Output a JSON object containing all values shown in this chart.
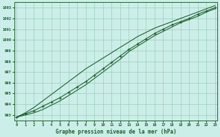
{
  "title": "Graphe pression niveau de la mer (hPa)",
  "bg_color": "#cceee8",
  "grid_color": "#99ccbb",
  "line_color": "#1a5c2a",
  "x_min": 0,
  "x_max": 23,
  "y_min": 992.5,
  "y_max": 1003.5,
  "y_ticks": [
    993,
    994,
    995,
    996,
    997,
    998,
    999,
    1000,
    1001,
    1002,
    1003
  ],
  "x_ticks": [
    0,
    1,
    2,
    3,
    4,
    5,
    6,
    7,
    8,
    9,
    10,
    11,
    12,
    13,
    14,
    15,
    16,
    17,
    18,
    19,
    20,
    21,
    22,
    23
  ],
  "series_marked": [
    992.8,
    993.1,
    993.4,
    993.8,
    994.2,
    994.6,
    995.1,
    995.6,
    996.1,
    996.7,
    997.3,
    997.9,
    998.5,
    999.1,
    999.6,
    1000.1,
    1000.6,
    1001.0,
    1001.4,
    1001.7,
    1002.0,
    1002.4,
    1002.7,
    1003.0
  ],
  "series_upper": [
    992.8,
    993.2,
    993.7,
    994.3,
    994.9,
    995.5,
    996.1,
    996.7,
    997.3,
    997.8,
    998.3,
    998.8,
    999.3,
    999.8,
    1000.3,
    1000.7,
    1001.1,
    1001.4,
    1001.7,
    1002.0,
    1002.3,
    1002.6,
    1002.9,
    1003.2
  ],
  "series_lower": [
    992.8,
    993.0,
    993.2,
    993.5,
    993.9,
    994.3,
    994.8,
    995.3,
    995.8,
    996.4,
    997.0,
    997.6,
    998.2,
    998.9,
    999.4,
    999.9,
    1000.4,
    1000.8,
    1001.2,
    1001.6,
    1001.9,
    1002.2,
    1002.6,
    1002.9
  ]
}
